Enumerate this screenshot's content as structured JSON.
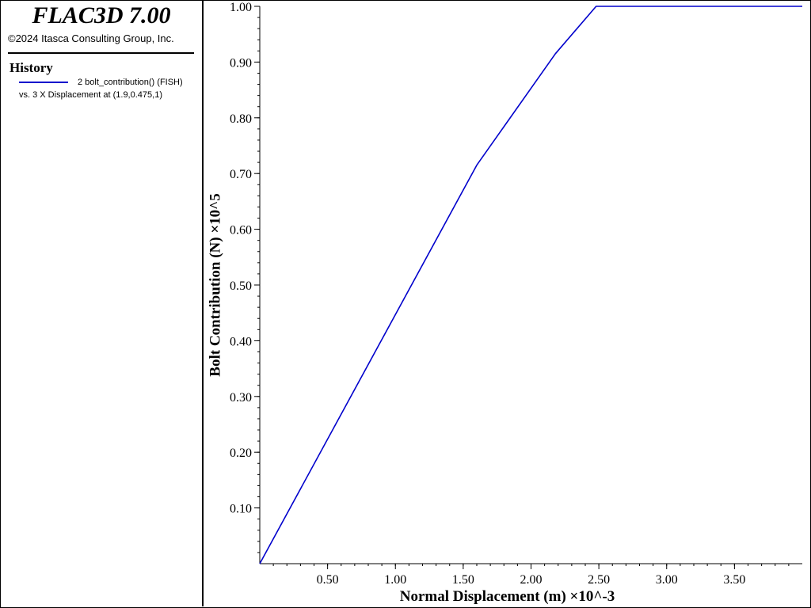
{
  "app": {
    "title": "FLAC3D 7.00",
    "copyright": "©2024 Itasca Consulting Group, Inc."
  },
  "legend": {
    "section_title": "History",
    "series_color": "#0000cc",
    "line1": "2 bolt_contribution() (FISH)",
    "line2": "vs. 3 X Displacement at (1.9,0.475,1)"
  },
  "chart_data": {
    "type": "line",
    "xlabel": "Normal Displacement (m) ×10^-3",
    "ylabel": "Bolt Contribution (N) ×10^5",
    "xlim": [
      0,
      4.0
    ],
    "ylim": [
      0,
      1.0
    ],
    "x_ticks": [
      0.5,
      1.0,
      1.5,
      2.0,
      2.5,
      3.0,
      3.5
    ],
    "x_tick_labels": [
      "0.50",
      "1.00",
      "1.50",
      "2.00",
      "2.50",
      "3.00",
      "3.50"
    ],
    "y_ticks": [
      0.1,
      0.2,
      0.3,
      0.4,
      0.5,
      0.6,
      0.7,
      0.8,
      0.9,
      1.0
    ],
    "y_tick_labels": [
      "0.10",
      "0.20",
      "0.30",
      "0.40",
      "0.50",
      "0.60",
      "0.70",
      "0.80",
      "0.90",
      "1.00"
    ],
    "grid": false,
    "series": [
      {
        "color": "#0000cc",
        "x": [
          0.0,
          1.6,
          2.18,
          2.48,
          4.0
        ],
        "y": [
          0.0,
          0.715,
          0.915,
          1.0,
          1.0
        ]
      }
    ]
  }
}
